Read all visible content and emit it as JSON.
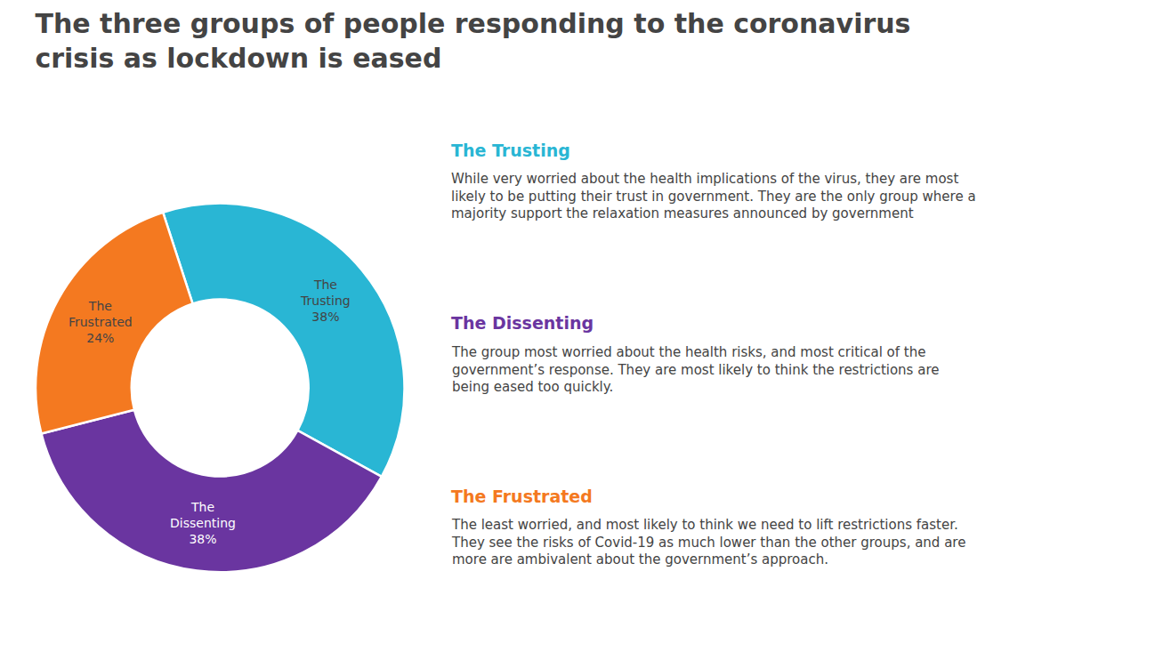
{
  "chart_data": {
    "type": "pie",
    "title": "The three groups of people responding to the coronavirus\ncrisis as lockdown is eased",
    "categories": [
      "The Trusting",
      "The Dissenting",
      "The Frustrated"
    ],
    "values": [
      38,
      38,
      24
    ],
    "value_labels": [
      "The\nTrusting\n38%",
      "The\nDissenting\n38%",
      "The\nFrustrated\n24%"
    ],
    "colors": [
      "#29b6d4",
      "#6a35a0",
      "#f47920"
    ],
    "data_labels": true,
    "annotations": [
      "While very worried about the health implications of the virus, they are most\nlikely to be putting their trust in government. They are the only group where a\nmajority support the relaxation measures announced by government",
      "The group most worried about the health risks, and most critical of the\ngovernment’s response. They are most likely to think the restrictions are\nbeing eased too quickly.",
      "The least worried, and most likely to think we need to lift restrictions faster.\nThey see the risks of Covid-19 as much lower than the other groups, and are\nmore are ambivalent about the government’s approach."
    ]
  }
}
